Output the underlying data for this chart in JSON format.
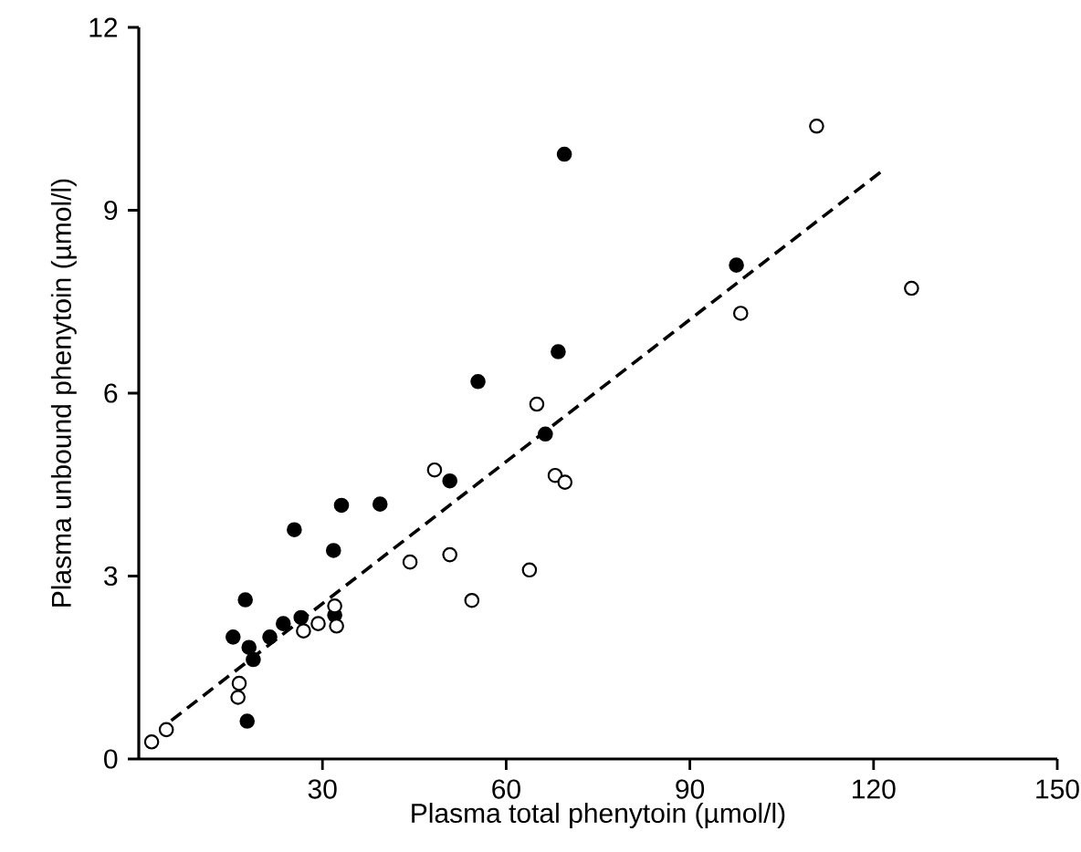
{
  "chart_data": {
    "type": "scatter",
    "xlabel": "Plasma  total phenytoin (µmol/l)",
    "ylabel": "Plasma  unbound phenytoin (µmol/l)",
    "xlim": [
      0,
      150
    ],
    "ylim": [
      0,
      12
    ],
    "xticks": [
      30,
      60,
      90,
      120,
      150
    ],
    "yticks": [
      0,
      3,
      6,
      9,
      12
    ],
    "marker": "circle",
    "series": [
      {
        "color": "#000000",
        "x": [
          15.4,
          17.4,
          18.0,
          18.7,
          17.7,
          21.4,
          23.6,
          26.5,
          25.4,
          31.8,
          32.0,
          33.1,
          39.4,
          50.8,
          55.4,
          66.4,
          69.5,
          68.5,
          97.6
        ],
        "values": [
          2.0,
          2.61,
          1.83,
          1.63,
          0.62,
          2.0,
          2.22,
          2.32,
          3.76,
          3.42,
          2.36,
          4.16,
          4.18,
          4.56,
          6.19,
          5.33,
          9.92,
          6.68,
          8.1
        ]
      },
      {
        "color": "#ffffff",
        "x": [
          2.1,
          4.5,
          16.4,
          16.2,
          26.9,
          29.3,
          32.0,
          32.3,
          44.3,
          48.3,
          50.8,
          54.4,
          63.8,
          65.0,
          68.0,
          69.6,
          110.7,
          98.3,
          126.2
        ],
        "values": [
          0.28,
          0.48,
          1.24,
          1.01,
          2.1,
          2.22,
          2.51,
          2.18,
          3.23,
          4.74,
          3.35,
          2.6,
          3.1,
          5.82,
          4.65,
          4.54,
          10.38,
          7.31,
          7.72
        ]
      },
      {
        "type": "line",
        "line_style": "dashed",
        "marker": "none",
        "color": "#000000",
        "x": [
          5.3,
          121.2
        ],
        "values": [
          0.63,
          9.63
        ]
      }
    ]
  }
}
